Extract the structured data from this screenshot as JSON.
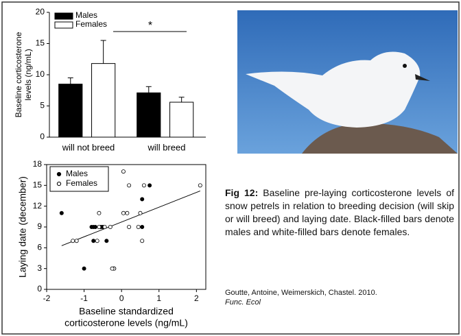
{
  "chart_data": [
    {
      "type": "bar",
      "ylabel_lines": [
        "Baseline corticosterone",
        "levels (ng/mL)"
      ],
      "categories": [
        "will not breed",
        "will breed"
      ],
      "series": [
        {
          "name": "Males",
          "color": "#000000",
          "values": [
            8.5,
            7.1
          ],
          "errors": [
            1.0,
            1.0
          ]
        },
        {
          "name": "Females",
          "color": "#ffffff",
          "values": [
            11.8,
            5.6
          ],
          "errors": [
            3.7,
            0.8
          ]
        }
      ],
      "ylim": [
        0,
        20
      ],
      "yticks": [
        0,
        5,
        10,
        15,
        20
      ],
      "legend": "upper left",
      "annotation": "*"
    },
    {
      "type": "scatter",
      "ylabel": "Laying date (december)",
      "xlabel_lines": [
        "Baseline standardized",
        "corticosterone levels (ng/mL)"
      ],
      "series": [
        {
          "name": "Males",
          "color": "#000000",
          "x": [
            -1.6,
            -1.0,
            -0.8,
            -0.75,
            -0.7,
            -0.75,
            -0.55,
            -0.5,
            -0.4,
            -0.2,
            0.55,
            0.55,
            0.75
          ],
          "values": [
            11,
            3,
            9,
            9,
            9,
            7,
            9,
            9,
            7,
            3,
            13,
            9,
            15
          ]
        },
        {
          "name": "Females",
          "color": "#ffffff",
          "x": [
            -1.3,
            -1.2,
            -0.65,
            -0.6,
            -0.6,
            -0.45,
            -0.3,
            -0.2,
            -0.25,
            0.05,
            0.05,
            0.15,
            0.2,
            0.2,
            0.45,
            0.5,
            0.55,
            0.6,
            2.1
          ],
          "values": [
            7,
            7,
            7,
            11,
            9,
            9,
            9,
            3,
            3,
            17,
            11,
            11,
            15,
            9,
            9,
            11,
            7,
            15,
            15
          ]
        }
      ],
      "trend_line": {
        "x": [
          -1.6,
          2.1
        ],
        "values": [
          6.3,
          14.2
        ]
      },
      "xlim": [
        -2,
        2.25
      ],
      "xticks": [
        -2,
        -1,
        0,
        1,
        2
      ],
      "ylim": [
        0,
        18
      ],
      "yticks": [
        0,
        3,
        6,
        9,
        12,
        15,
        18
      ],
      "legend": "upper left"
    }
  ],
  "caption": {
    "label": "Fig 12:",
    "text": "Baseline pre-laying corticosterone levels of snow petrels in relation to breeding decision (will skip or will breed) and laying date. Black-filled bars denote males and white-filled bars denote females.",
    "citation": "Goutte, Antoine, Weimerskich, Chastel. 2010.",
    "journal": "Func. Ecol"
  }
}
